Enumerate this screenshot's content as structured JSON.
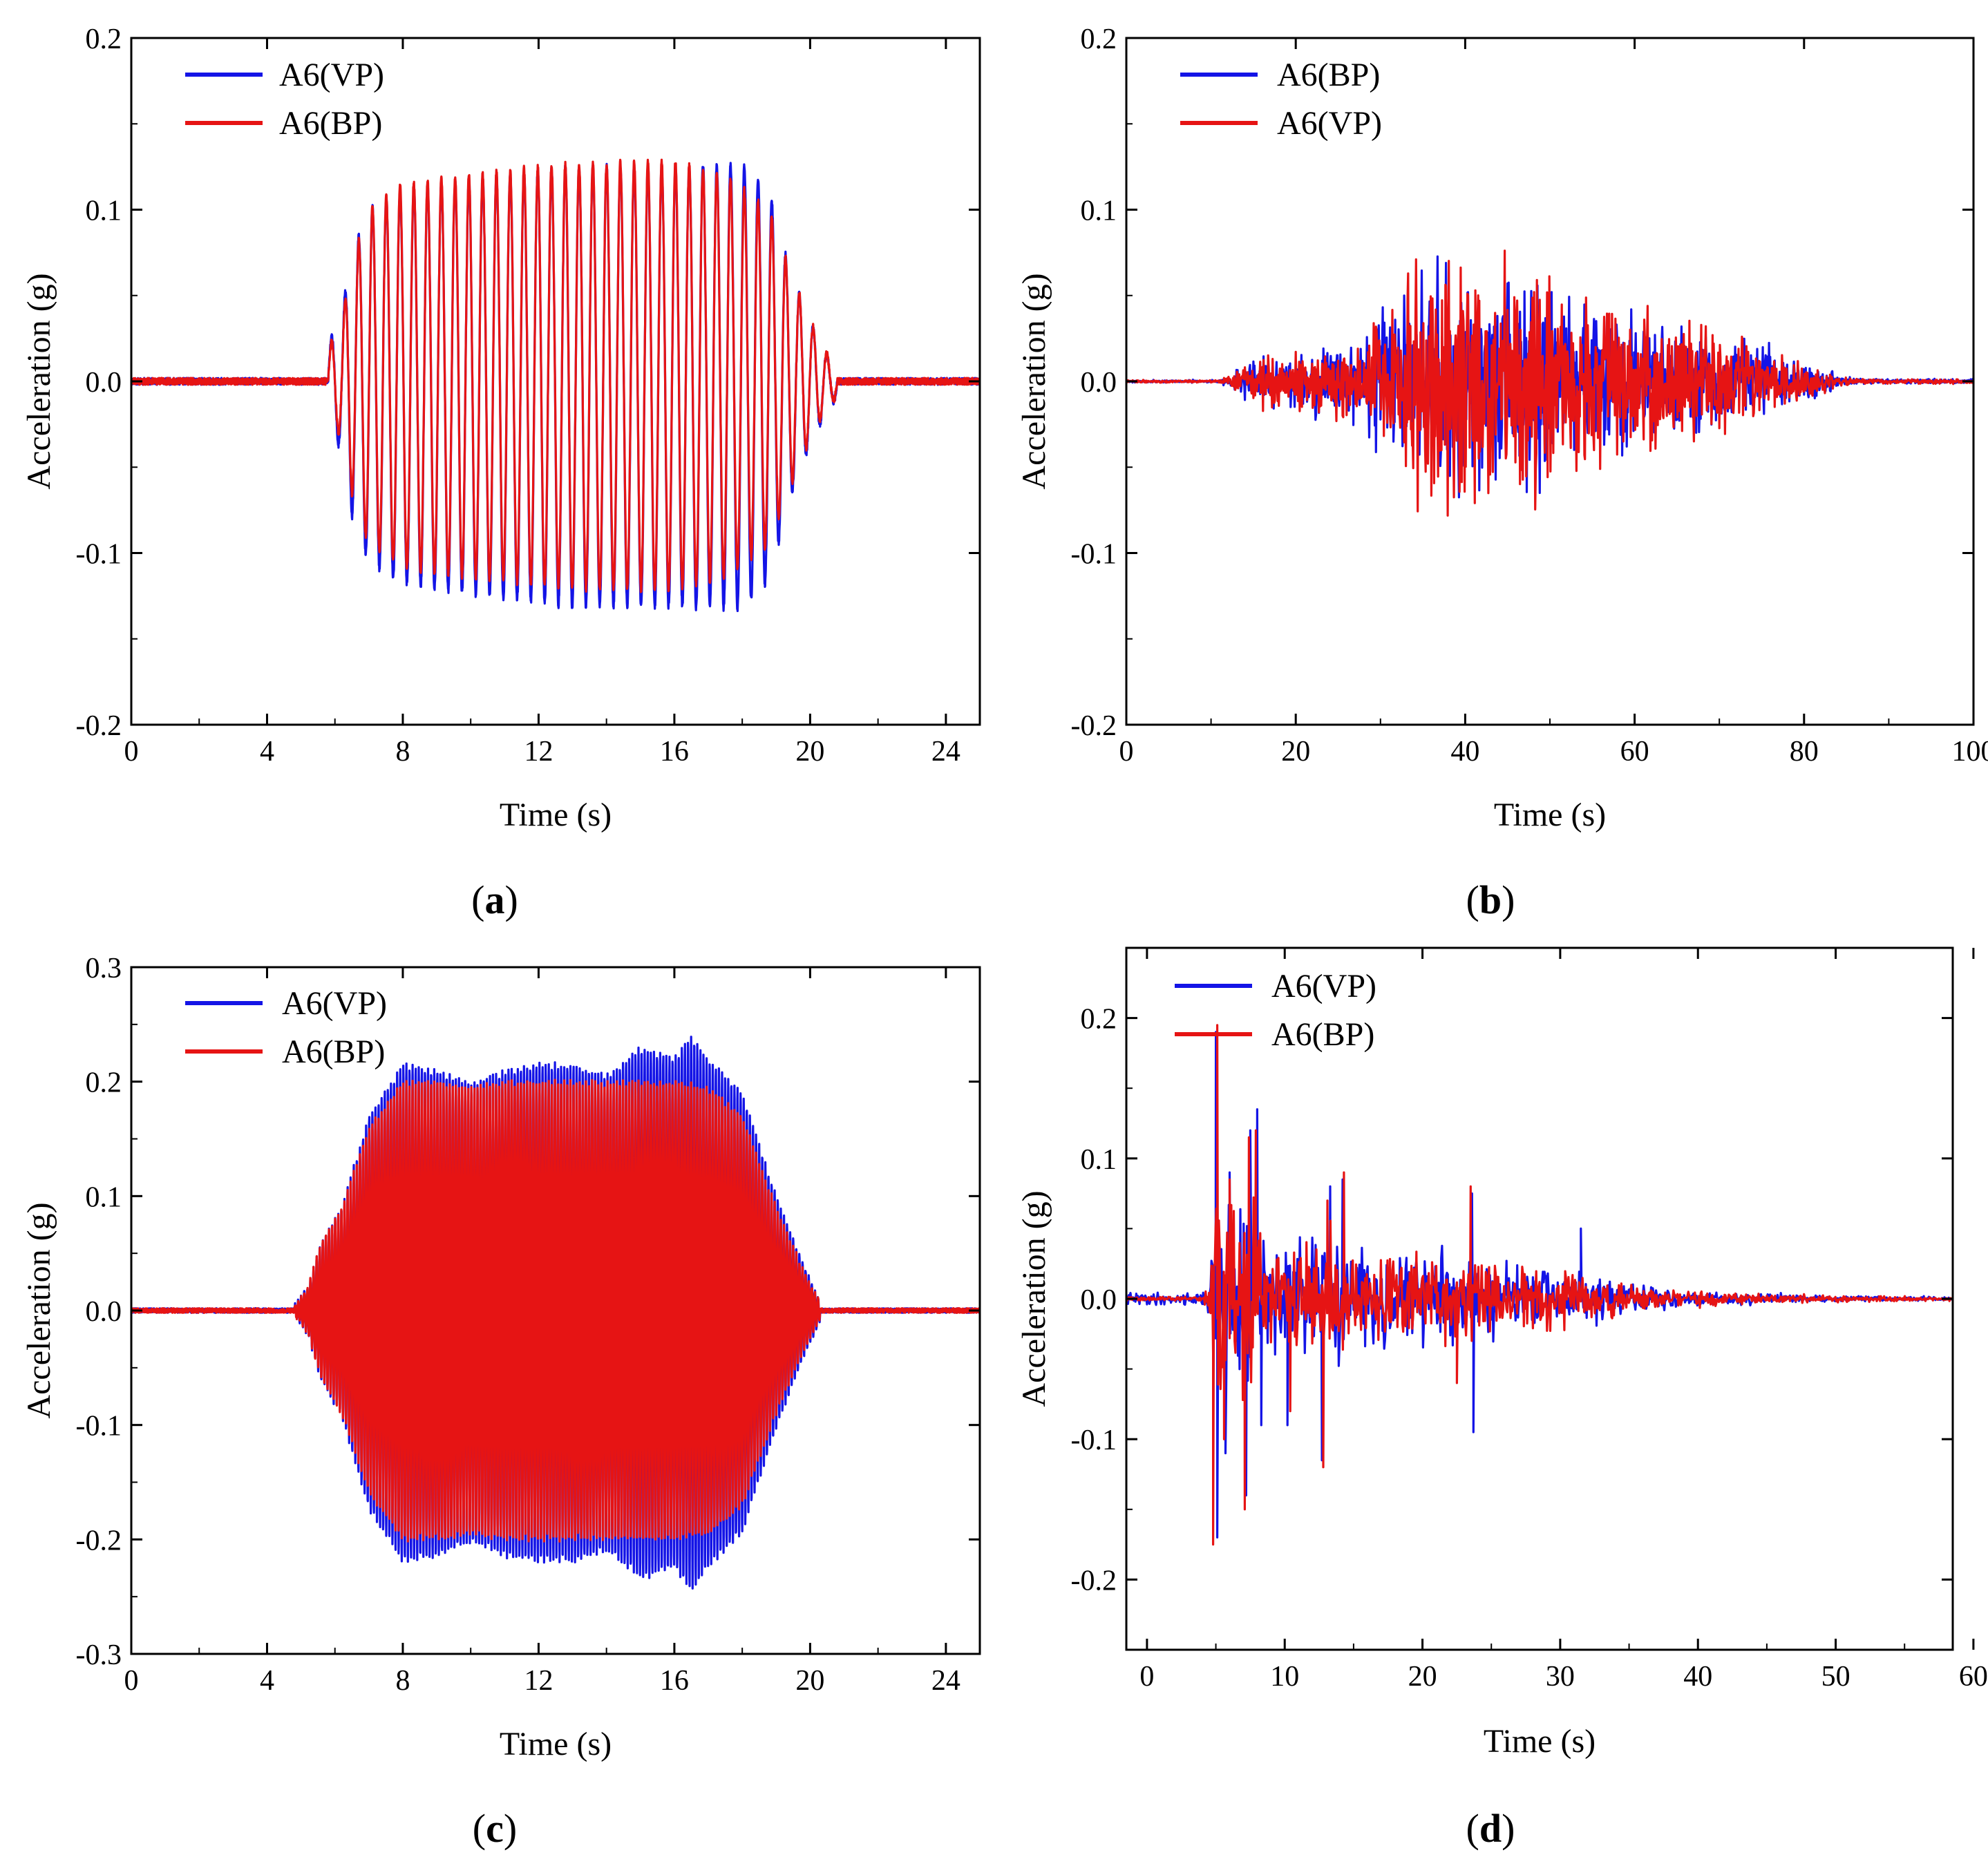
{
  "figure": {
    "panels": [
      {
        "label_open": "(",
        "label": "a",
        "label_close": ")",
        "title": "",
        "xlabel": "Time (s)",
        "ylabel": "Acceleration (g)",
        "xlim": [
          0,
          25
        ],
        "ylim": [
          -0.2,
          0.2
        ],
        "xticks": [
          0,
          4,
          8,
          12,
          16,
          20,
          24
        ],
        "xtick_labels": [
          "0",
          "4",
          "8",
          "12",
          "16",
          "20",
          "24"
        ],
        "yticks": [
          -0.2,
          -0.1,
          0.0,
          0.1,
          0.2
        ],
        "ytick_labels": [
          "-0.2",
          "-0.1",
          "0.0",
          "0.1",
          "0.2"
        ],
        "legend": [
          "A6(VP)",
          "A6(BP)"
        ],
        "legend_colors": [
          "#1414e6",
          "#e61414"
        ]
      },
      {
        "label_open": "(",
        "label": "b",
        "label_close": ")",
        "title": "",
        "xlabel": "Time (s)",
        "ylabel": "Acceleration (g)",
        "xlim": [
          0,
          100
        ],
        "ylim": [
          -0.2,
          0.2
        ],
        "xticks": [
          0,
          20,
          40,
          60,
          80,
          100
        ],
        "xtick_labels": [
          "0",
          "20",
          "40",
          "60",
          "80",
          "100"
        ],
        "yticks": [
          -0.2,
          -0.1,
          0.0,
          0.1,
          0.2
        ],
        "ytick_labels": [
          "-0.2",
          "-0.1",
          "0.0",
          "0.1",
          "0.2"
        ],
        "legend": [
          "A6(BP)",
          "A6(VP)"
        ],
        "legend_colors": [
          "#1414e6",
          "#e61414"
        ]
      },
      {
        "label_open": "(",
        "label": "c",
        "label_close": ")",
        "title": "",
        "xlabel": "Time (s)",
        "ylabel": "Acceleration (g)",
        "xlim": [
          0,
          25
        ],
        "ylim": [
          -0.3,
          0.3
        ],
        "xticks": [
          0,
          4,
          8,
          12,
          16,
          20,
          24
        ],
        "xtick_labels": [
          "0",
          "4",
          "8",
          "12",
          "16",
          "20",
          "24"
        ],
        "yticks": [
          -0.3,
          -0.2,
          -0.1,
          0.0,
          0.1,
          0.2,
          0.3
        ],
        "ytick_labels": [
          "-0.3",
          "-0.2",
          "-0.1",
          "0.0",
          "0.1",
          "0.2",
          "0.3"
        ],
        "legend": [
          "A6(VP)",
          "A6(BP)"
        ],
        "legend_colors": [
          "#1414e6",
          "#e61414"
        ]
      },
      {
        "label_open": "(",
        "label": "d",
        "label_close": ")",
        "title": "",
        "xlabel": "Time (s)",
        "ylabel": "Acceleration (g)",
        "xlim": [
          -1.5,
          58.5
        ],
        "ylim": [
          -0.25,
          0.25
        ],
        "xticks": [
          0,
          10,
          20,
          30,
          40,
          50,
          60
        ],
        "xtick_labels": [
          "0",
          "10",
          "20",
          "30",
          "40",
          "50",
          "60"
        ],
        "yticks": [
          -0.2,
          -0.1,
          0.0,
          0.1,
          0.2
        ],
        "ytick_labels": [
          "-0.2",
          "-0.1",
          "0.0",
          "0.1",
          "0.2"
        ],
        "legend": [
          "A6(VP)",
          "A6(BP)"
        ],
        "legend_colors": [
          "#1414e6",
          "#e61414"
        ]
      }
    ]
  },
  "chart_data": [
    {
      "type": "line",
      "title": "",
      "xlabel": "Time (s)",
      "ylabel": "Acceleration (g)",
      "xlim": [
        0,
        25
      ],
      "ylim": [
        -0.2,
        0.2
      ],
      "legend_location": "top-left",
      "series": [
        {
          "name": "A6(VP)",
          "color": "#1414e6",
          "signal": "sinusoidal sweep",
          "envelope": [
            [
              0,
              0.003
            ],
            [
              4,
              0.003
            ],
            [
              5.5,
              0.006
            ],
            [
              6.2,
              0.04
            ],
            [
              6.5,
              0.075
            ],
            [
              7,
              0.1
            ],
            [
              8,
              0.112
            ],
            [
              10,
              0.118
            ],
            [
              13,
              0.125
            ],
            [
              16,
              0.125
            ],
            [
              18,
              0.126
            ],
            [
              18.8,
              0.11
            ],
            [
              19.4,
              0.065
            ],
            [
              20,
              0.035
            ],
            [
              20.6,
              0.012
            ],
            [
              21.5,
              0.004
            ],
            [
              25,
              0.003
            ]
          ],
          "cycles": [
            [
              5.8,
              0
            ],
            [
              6.6,
              2
            ],
            [
              20.8,
              37
            ]
          ],
          "amp_scale_neg": 1.05,
          "seed": 11
        },
        {
          "name": "A6(BP)",
          "color": "#e61414",
          "signal": "sinusoidal sweep",
          "envelope": [
            [
              0,
              0.004
            ],
            [
              4,
              0.004
            ],
            [
              5.5,
              0.007
            ],
            [
              6.2,
              0.035
            ],
            [
              6.5,
              0.07
            ],
            [
              7,
              0.1
            ],
            [
              8,
              0.115
            ],
            [
              10,
              0.12
            ],
            [
              13,
              0.127
            ],
            [
              16,
              0.128
            ],
            [
              17.5,
              0.12
            ],
            [
              18.8,
              0.1
            ],
            [
              19.4,
              0.065
            ],
            [
              20,
              0.035
            ],
            [
              20.6,
              0.012
            ],
            [
              21.5,
              0.004
            ],
            [
              25,
              0.004
            ]
          ],
          "cycles": [
            [
              5.8,
              0
            ],
            [
              6.6,
              2
            ],
            [
              20.8,
              37
            ]
          ],
          "amp_scale_neg": 0.95,
          "seed": 12
        }
      ]
    },
    {
      "type": "line",
      "title": "",
      "xlabel": "Time (s)",
      "ylabel": "Acceleration (g)",
      "xlim": [
        0,
        100
      ],
      "ylim": [
        -0.2,
        0.2
      ],
      "legend_location": "top-left",
      "series": [
        {
          "name": "A6(BP)",
          "color": "#1414e6",
          "signal": "random",
          "envelope": [
            [
              0,
              0.001
            ],
            [
              11,
              0.001
            ],
            [
              13,
              0.008
            ],
            [
              16,
              0.02
            ],
            [
              22,
              0.025
            ],
            [
              28,
              0.035
            ],
            [
              33,
              0.07
            ],
            [
              36,
              0.09
            ],
            [
              40,
              0.085
            ],
            [
              44,
              0.08
            ],
            [
              48,
              0.085
            ],
            [
              52,
              0.07
            ],
            [
              56,
              0.06
            ],
            [
              62,
              0.05
            ],
            [
              68,
              0.04
            ],
            [
              74,
              0.03
            ],
            [
              80,
              0.015
            ],
            [
              84,
              0.005
            ],
            [
              86,
              0.002
            ],
            [
              100,
              0.002
            ]
          ],
          "samples": 1500,
          "seed": 21
        },
        {
          "name": "A6(VP)",
          "color": "#e61414",
          "signal": "random",
          "envelope": [
            [
              0,
              0.001
            ],
            [
              11,
              0.001
            ],
            [
              13,
              0.008
            ],
            [
              16,
              0.02
            ],
            [
              22,
              0.025
            ],
            [
              28,
              0.035
            ],
            [
              33,
              0.075
            ],
            [
              36,
              0.1
            ],
            [
              40,
              0.095
            ],
            [
              44,
              0.085
            ],
            [
              48,
              0.09
            ],
            [
              52,
              0.075
            ],
            [
              56,
              0.065
            ],
            [
              62,
              0.055
            ],
            [
              68,
              0.045
            ],
            [
              74,
              0.03
            ],
            [
              80,
              0.015
            ],
            [
              84,
              0.005
            ],
            [
              86,
              0.002
            ],
            [
              100,
              0.002
            ]
          ],
          "samples": 1500,
          "seed": 22
        }
      ]
    },
    {
      "type": "line",
      "title": "",
      "xlabel": "Time (s)",
      "ylabel": "Acceleration (g)",
      "xlim": [
        0,
        25
      ],
      "ylim": [
        -0.3,
        0.3
      ],
      "legend_location": "top-left",
      "series": [
        {
          "name": "A6(VP)",
          "color": "#1414e6",
          "signal": "dense oscillation",
          "envelope": [
            [
              0,
              0.004
            ],
            [
              4.8,
              0.004
            ],
            [
              5.2,
              0.02
            ],
            [
              5.6,
              0.06
            ],
            [
              6.2,
              0.09
            ],
            [
              7,
              0.17
            ],
            [
              8,
              0.215
            ],
            [
              9,
              0.21
            ],
            [
              10,
              0.198
            ],
            [
              11,
              0.21
            ],
            [
              12,
              0.215
            ],
            [
              13,
              0.215
            ],
            [
              14,
              0.205
            ],
            [
              15,
              0.23
            ],
            [
              16,
              0.22
            ],
            [
              16.5,
              0.24
            ],
            [
              17,
              0.22
            ],
            [
              18,
              0.19
            ],
            [
              19,
              0.1
            ],
            [
              19.8,
              0.04
            ],
            [
              20.3,
              0.008
            ],
            [
              25,
              0.006
            ]
          ],
          "cycles": [
            [
              4.8,
              0
            ],
            [
              20.3,
              170
            ]
          ],
          "amp_scale_neg": 1.02,
          "seed": 31
        },
        {
          "name": "A6(BP)",
          "color": "#e61414",
          "signal": "dense oscillation",
          "envelope": [
            [
              0,
              0.003
            ],
            [
              4.8,
              0.003
            ],
            [
              5.2,
              0.02
            ],
            [
              5.6,
              0.06
            ],
            [
              6.2,
              0.09
            ],
            [
              7,
              0.16
            ],
            [
              8,
              0.2
            ],
            [
              9,
              0.2
            ],
            [
              10,
              0.195
            ],
            [
              11,
              0.2
            ],
            [
              12,
              0.2
            ],
            [
              13,
              0.2
            ],
            [
              14,
              0.2
            ],
            [
              15,
              0.2
            ],
            [
              16,
              0.2
            ],
            [
              17,
              0.195
            ],
            [
              18,
              0.17
            ],
            [
              19,
              0.09
            ],
            [
              19.8,
              0.035
            ],
            [
              20.3,
              0.006
            ],
            [
              25,
              0.005
            ]
          ],
          "cycles": [
            [
              4.8,
              0
            ],
            [
              20.3,
              170
            ]
          ],
          "amp_scale_neg": 1.0,
          "seed": 32
        }
      ]
    },
    {
      "type": "line",
      "title": "",
      "xlabel": "Time (s)",
      "ylabel": "Acceleration (g)",
      "xlim": [
        -1.5,
        58.5
      ],
      "ylim": [
        -0.25,
        0.25
      ],
      "legend_location": "top-left",
      "series": [
        {
          "name": "A6(VP)",
          "color": "#1414e6",
          "signal": "random",
          "envelope": [
            [
              -1.5,
              0.006
            ],
            [
              4,
              0.006
            ],
            [
              4.5,
              0.02
            ],
            [
              5,
              0.12
            ],
            [
              6,
              0.1
            ],
            [
              7.5,
              0.11
            ],
            [
              8.5,
              0.07
            ],
            [
              10,
              0.05
            ],
            [
              13,
              0.06
            ],
            [
              16,
              0.045
            ],
            [
              20,
              0.045
            ],
            [
              24,
              0.04
            ],
            [
              27,
              0.03
            ],
            [
              30,
              0.03
            ],
            [
              33,
              0.02
            ],
            [
              37,
              0.01
            ],
            [
              42,
              0.006
            ],
            [
              50,
              0.003
            ],
            [
              58.5,
              0.002
            ]
          ],
          "spikes": [
            [
              5.0,
              0.19
            ],
            [
              5.1,
              -0.17
            ],
            [
              5.7,
              -0.11
            ],
            [
              6.0,
              0.09
            ],
            [
              7.2,
              -0.14
            ],
            [
              7.5,
              0.12
            ],
            [
              8.0,
              0.135
            ],
            [
              8.3,
              -0.09
            ],
            [
              10.2,
              -0.09
            ],
            [
              12.7,
              -0.115
            ],
            [
              13.3,
              0.08
            ],
            [
              14.2,
              0.085
            ],
            [
              23.7,
              -0.095
            ],
            [
              23.6,
              0.075
            ],
            [
              31.5,
              0.05
            ]
          ],
          "samples": 1000,
          "seed": 41
        },
        {
          "name": "A6(BP)",
          "color": "#e61414",
          "signal": "random",
          "envelope": [
            [
              -1.5,
              0.002
            ],
            [
              4,
              0.002
            ],
            [
              4.5,
              0.02
            ],
            [
              5,
              0.12
            ],
            [
              6,
              0.1
            ],
            [
              7.5,
              0.11
            ],
            [
              8.5,
              0.07
            ],
            [
              10,
              0.05
            ],
            [
              13,
              0.06
            ],
            [
              16,
              0.045
            ],
            [
              20,
              0.05
            ],
            [
              24,
              0.04
            ],
            [
              27,
              0.03
            ],
            [
              30,
              0.03
            ],
            [
              33,
              0.02
            ],
            [
              37,
              0.01
            ],
            [
              42,
              0.006
            ],
            [
              50,
              0.003
            ],
            [
              58.5,
              0.002
            ]
          ],
          "spikes": [
            [
              5.1,
              0.195
            ],
            [
              4.8,
              -0.175
            ],
            [
              5.6,
              -0.1
            ],
            [
              6.0,
              0.085
            ],
            [
              7.1,
              -0.15
            ],
            [
              7.4,
              0.115
            ],
            [
              7.9,
              0.12
            ],
            [
              10.4,
              -0.08
            ],
            [
              12.8,
              -0.12
            ],
            [
              13.1,
              0.07
            ],
            [
              14.3,
              0.09
            ],
            [
              23.5,
              0.08
            ],
            [
              22.5,
              -0.06
            ]
          ],
          "samples": 1000,
          "seed": 42
        }
      ]
    }
  ]
}
